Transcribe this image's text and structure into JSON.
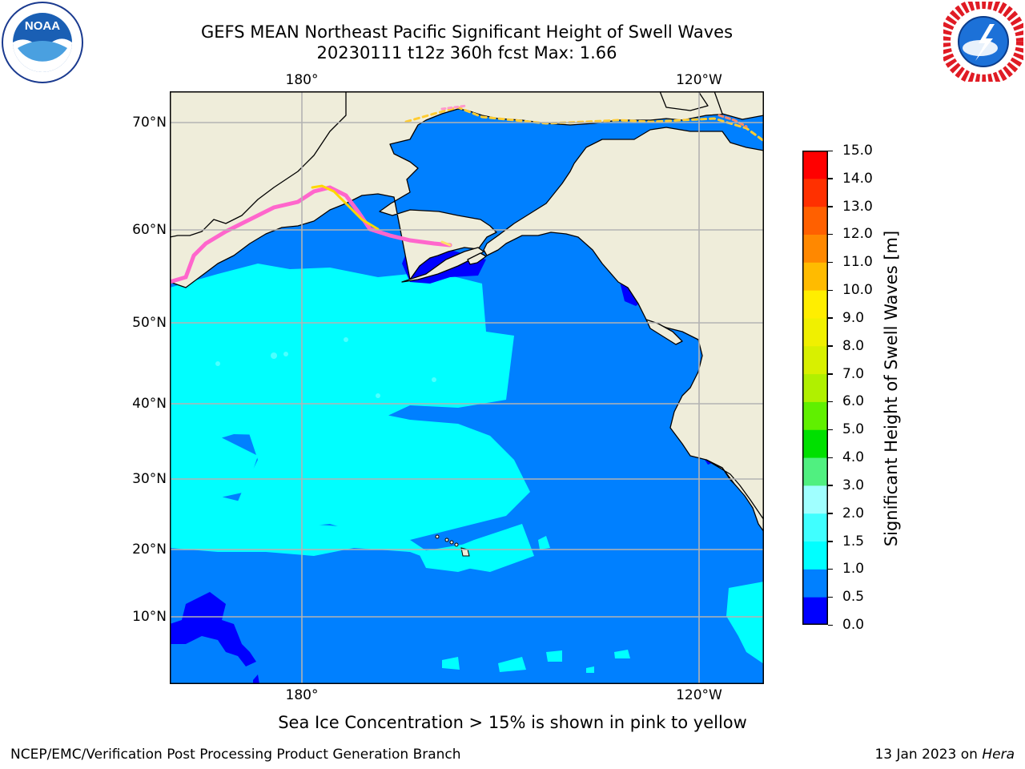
{
  "header": {
    "title_line1": "GEFS MEAN Northeast Pacific Significant Height of Swell Waves",
    "title_line2": "20230111 t12z 360h fcst   Max: 1.66"
  },
  "logos": {
    "left": {
      "icon": "noaa-logo",
      "text": "NOAA"
    },
    "right": {
      "icon": "nws-logo"
    }
  },
  "map": {
    "lon_labels": [
      "180°",
      "120°W"
    ],
    "lat_labels": [
      "70°N",
      "60°N",
      "50°N",
      "40°N",
      "30°N",
      "20°N",
      "10°N"
    ],
    "colors": {
      "land": "#efedda",
      "ocean": "#0080ff",
      "ocean_light": "#00ffff",
      "ice_low": "#ff66cc",
      "ice_high": "#ffd700",
      "grid": "#b3b3b3",
      "coast": "#000000"
    }
  },
  "colorbar": {
    "title": "Significant Height of Swell Waves [m]",
    "ticks": [
      "0.0",
      "0.5",
      "1.0",
      "1.5",
      "2.0",
      "3.0",
      "4.0",
      "5.0",
      "6.0",
      "7.0",
      "8.0",
      "9.0",
      "10.0",
      "11.0",
      "12.0",
      "13.0",
      "14.0",
      "15.0"
    ],
    "colors": [
      "#0000ff",
      "#0080ff",
      "#00ffff",
      "#40ffff",
      "#a0ffff",
      "#50f080",
      "#00e000",
      "#60f000",
      "#b0f000",
      "#d8f000",
      "#f0f000",
      "#ffee00",
      "#ffbb00",
      "#ff8800",
      "#ff6000",
      "#ff3000",
      "#ff0000"
    ]
  },
  "notes": {
    "sea_ice": "Sea Ice Concentration > 15% is shown in pink to yellow"
  },
  "footer": {
    "left": "NCEP/EMC/Verification Post Processing Product Generation Branch",
    "right_date": "13 Jan 2023 on",
    "right_host": "Hera"
  }
}
